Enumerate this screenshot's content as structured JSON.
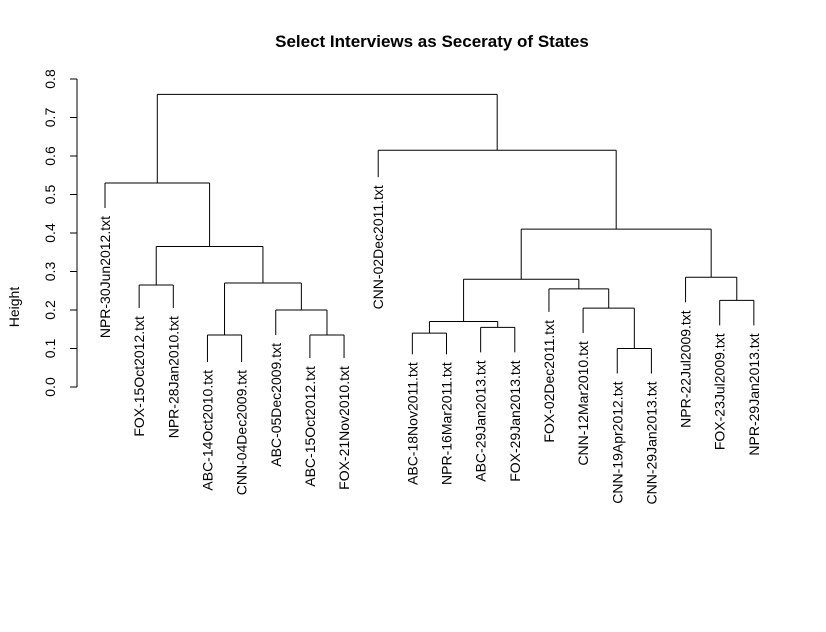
{
  "chart_data": {
    "type": "dendrogram",
    "title": "Select Interviews as Seceraty of States",
    "ylabel": "Height",
    "ylim": [
      0,
      0.8
    ],
    "yticks": [
      "0.0",
      "0.1",
      "0.2",
      "0.3",
      "0.4",
      "0.5",
      "0.6",
      "0.7",
      "0.8"
    ],
    "leaves": [
      {
        "label": "NPR-30Jun2012.txt",
        "top": 0.465
      },
      {
        "label": "FOX-15Oct2012.txt",
        "top": 0.205
      },
      {
        "label": "NPR-28Jan2010.txt",
        "top": 0.205
      },
      {
        "label": "ABC-14Oct2010.txt",
        "top": 0.065
      },
      {
        "label": "CNN-04Dec2009.txt",
        "top": 0.065
      },
      {
        "label": "ABC-05Dec2009.txt",
        "top": 0.135
      },
      {
        "label": "ABC-15Oct2012.txt",
        "top": 0.075
      },
      {
        "label": "FOX-21Nov2010.txt",
        "top": 0.075
      },
      {
        "label": "CNN-02Dec2011.txt",
        "top": 0.545
      },
      {
        "label": "ABC-18Nov2011.txt",
        "top": 0.085
      },
      {
        "label": "NPR-16Mar2011.txt",
        "top": 0.085
      },
      {
        "label": "ABC-29Jan2013.txt",
        "top": 0.09
      },
      {
        "label": "FOX-29Jan2013.txt",
        "top": 0.09
      },
      {
        "label": "FOX-02Dec2011.txt",
        "top": 0.195
      },
      {
        "label": "CNN-12Mar2010.txt",
        "top": 0.14
      },
      {
        "label": "CNN-19Apr2012.txt",
        "top": 0.035
      },
      {
        "label": "CNN-29Jan2013.txt",
        "top": 0.035
      },
      {
        "label": "NPR-22Jul2009.txt",
        "top": 0.22
      },
      {
        "label": "FOX-23Jul2009.txt",
        "top": 0.16
      },
      {
        "label": "NPR-29Jan2013.txt",
        "top": 0.16
      }
    ],
    "merges": [
      {
        "a": "L1",
        "b": "L2",
        "height": 0.265
      },
      {
        "a": "L3",
        "b": "L4",
        "height": 0.135
      },
      {
        "a": "L6",
        "b": "L7",
        "height": 0.135
      },
      {
        "a": "L5",
        "b": "N2",
        "height": 0.2
      },
      {
        "a": "N1",
        "b": "N3",
        "height": 0.27
      },
      {
        "a": "N0",
        "b": "N4",
        "height": 0.365
      },
      {
        "a": "L0",
        "b": "N5",
        "height": 0.53
      },
      {
        "a": "L9",
        "b": "L10",
        "height": 0.14
      },
      {
        "a": "L11",
        "b": "L12",
        "height": 0.155
      },
      {
        "a": "N7",
        "b": "N8",
        "height": 0.17
      },
      {
        "a": "L15",
        "b": "L16",
        "height": 0.1
      },
      {
        "a": "L14",
        "b": "N10",
        "height": 0.205
      },
      {
        "a": "L13",
        "b": "N11",
        "height": 0.255
      },
      {
        "a": "N9",
        "b": "N12",
        "height": 0.28
      },
      {
        "a": "L18",
        "b": "L19",
        "height": 0.225
      },
      {
        "a": "L17",
        "b": "N14",
        "height": 0.285
      },
      {
        "a": "N13",
        "b": "N15",
        "height": 0.41
      },
      {
        "a": "L8",
        "b": "N16",
        "height": 0.615
      },
      {
        "a": "N6",
        "b": "N17",
        "height": 0.76
      }
    ]
  }
}
